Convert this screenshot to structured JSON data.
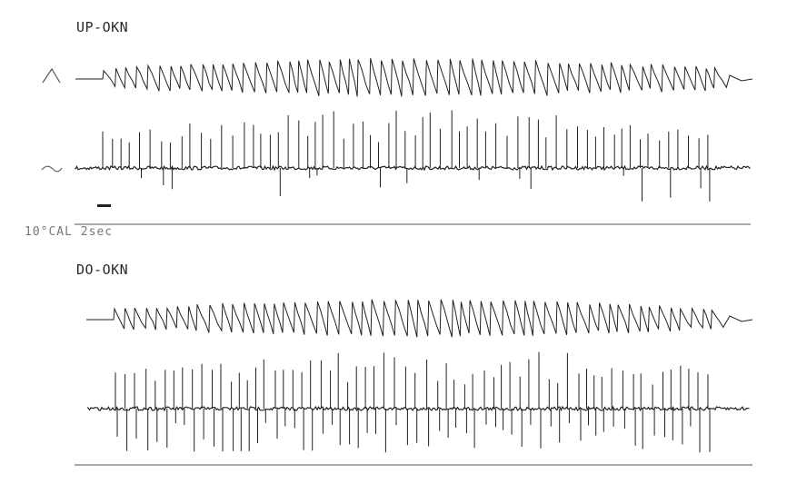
{
  "chart_data": [
    {
      "type": "line",
      "title": "UP-OKN",
      "series": [
        {
          "trace": "position",
          "pattern": "sawtooth nystagmus"
        },
        {
          "trace": "velocity",
          "pattern": "upward spikes"
        }
      ]
    },
    {
      "type": "line",
      "title": "DO-OKN",
      "series": [
        {
          "trace": "position",
          "pattern": "sawtooth nystagmus"
        },
        {
          "trace": "velocity",
          "pattern": "bidirectional spikes"
        }
      ]
    }
  ],
  "calibration": {
    "label": "10°CAL 2sec"
  },
  "colors": {
    "trace": "#222222",
    "rule": "#555555",
    "label": "#2a2a2a"
  }
}
